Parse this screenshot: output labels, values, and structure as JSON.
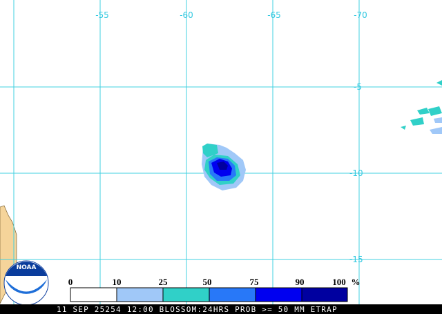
{
  "map": {
    "lon_labels": [
      "-55",
      "-60",
      "-65",
      "-70"
    ],
    "lat_labels": [
      "-5",
      "-10",
      "-15"
    ],
    "legend": {
      "ticks": [
        "0",
        "10",
        "25",
        "50",
        "75",
        "90",
        "100"
      ],
      "unit": "%"
    },
    "logo": "NOAA",
    "footer": "11 SEP 25254 12:00 BLOSSOM:24HRS PROB >= 50 MM ETRAP"
  }
}
